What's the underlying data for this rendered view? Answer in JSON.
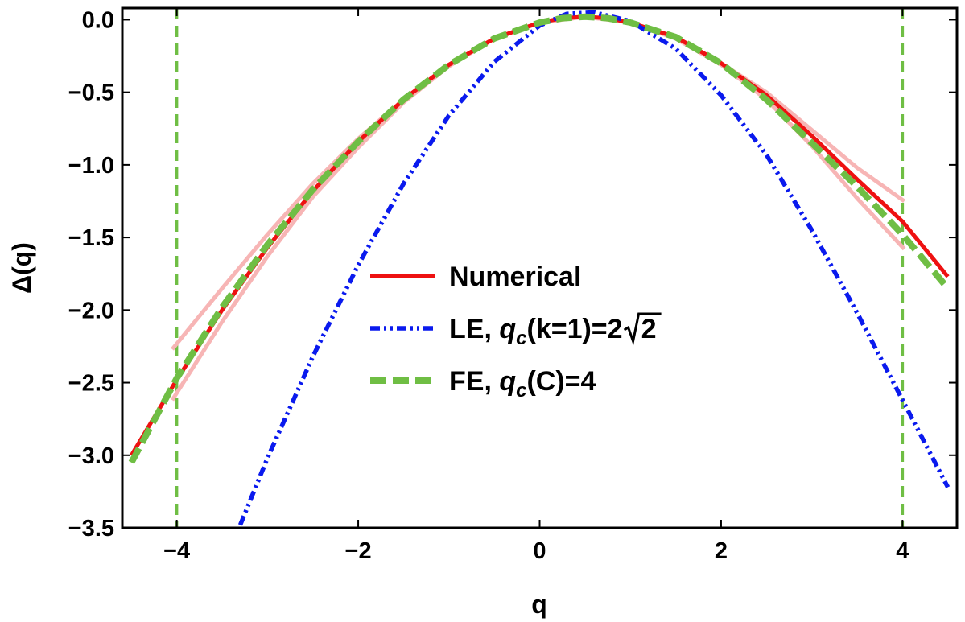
{
  "chart_data": {
    "type": "line",
    "xlabel": "q",
    "ylabel": "Δ(q)",
    "xlim": [
      -4.6,
      4.6
    ],
    "ylim": [
      -3.5,
      0.08
    ],
    "grid": false,
    "legend_position": "center",
    "x_ticks": [
      -4,
      -2,
      0,
      2,
      4
    ],
    "x_tick_labels": [
      "−4",
      "−2",
      "0",
      "2",
      "4"
    ],
    "y_ticks": [
      0.0,
      -0.5,
      -1.0,
      -1.5,
      -2.0,
      -2.5,
      -3.0,
      -3.5
    ],
    "y_tick_labels": [
      "0.0",
      "−0.5",
      "−1.0",
      "−1.5",
      "−2.0",
      "−2.5",
      "−3.0",
      "−3.5"
    ],
    "vertical_lines": [
      -4,
      4
    ],
    "series": [
      {
        "name": "Numerical",
        "color": "#ee1111",
        "style": "solid",
        "x": [
          -4.5,
          -4,
          -3.5,
          -3,
          -2.5,
          -2,
          -1.5,
          -1,
          -0.5,
          0,
          0.25,
          0.5,
          0.75,
          1,
          1.5,
          2,
          2.5,
          3,
          3.5,
          4,
          4.5
        ],
        "y": [
          -3.0,
          -2.48,
          -2.0,
          -1.57,
          -1.18,
          -0.84,
          -0.55,
          -0.31,
          -0.13,
          -0.02,
          0.01,
          0.02,
          0.01,
          -0.02,
          -0.12,
          -0.3,
          -0.52,
          -0.8,
          -1.1,
          -1.39,
          -1.77
        ]
      },
      {
        "name": "Numerical band (upper)",
        "color": "#f7b5b5",
        "style": "band",
        "x": [
          -4.05,
          -3.5,
          -3,
          -2.5,
          -2,
          -1.5,
          -1,
          -0.5,
          0,
          0.5,
          1,
          1.5,
          2,
          2.5,
          3,
          3.5,
          4.02
        ],
        "y": [
          -2.27,
          -1.85,
          -1.48,
          -1.13,
          -0.82,
          -0.55,
          -0.31,
          -0.13,
          -0.02,
          0.02,
          -0.02,
          -0.12,
          -0.3,
          -0.5,
          -0.76,
          -1.02,
          -1.25
        ]
      },
      {
        "name": "Numerical band (lower)",
        "color": "#f7b5b5",
        "style": "band",
        "x": [
          -4.05,
          -3.5,
          -3,
          -2.5,
          -2,
          -1.5,
          -1,
          -0.5,
          0,
          0.5,
          1,
          1.5,
          2,
          2.5,
          3,
          3.5,
          4.02
        ],
        "y": [
          -2.62,
          -2.08,
          -1.63,
          -1.22,
          -0.88,
          -0.57,
          -0.32,
          -0.13,
          -0.02,
          0.02,
          -0.02,
          -0.13,
          -0.31,
          -0.55,
          -0.87,
          -1.23,
          -1.58
        ]
      },
      {
        "name": "LE, q_c(k=1)=2√2",
        "color": "#0a1aee",
        "style": "dash-dot",
        "x": [
          -3.3,
          -3,
          -2.5,
          -2,
          -1.5,
          -1,
          -0.5,
          0,
          0.3,
          0.6,
          1,
          1.5,
          2,
          2.5,
          3,
          3.5,
          4,
          4.5
        ],
        "y": [
          -3.48,
          -3.02,
          -2.32,
          -1.69,
          -1.13,
          -0.66,
          -0.29,
          -0.04,
          0.04,
          0.05,
          -0.01,
          -0.2,
          -0.52,
          -0.93,
          -1.45,
          -2.02,
          -2.62,
          -3.22
        ]
      },
      {
        "name": "FE, q_c(C)=4",
        "color": "#6fbe44",
        "style": "dashed",
        "x": [
          -4.5,
          -4,
          -3.5,
          -3,
          -2.5,
          -2,
          -1.5,
          -1,
          -0.5,
          0,
          0.25,
          0.5,
          0.75,
          1,
          1.5,
          2,
          2.5,
          3,
          3.5,
          4,
          4.5
        ],
        "y": [
          -3.05,
          -2.47,
          -1.98,
          -1.55,
          -1.17,
          -0.84,
          -0.55,
          -0.31,
          -0.13,
          -0.02,
          0.01,
          0.02,
          0.01,
          -0.02,
          -0.12,
          -0.3,
          -0.55,
          -0.85,
          -1.15,
          -1.48,
          -1.85
        ]
      }
    ],
    "legend": [
      {
        "label_main": "Numerical",
        "label_sub": "",
        "label_rest": "",
        "sqrt": ""
      },
      {
        "label_main": "LE, q",
        "label_sub": "c",
        "label_rest": "(k=1)=2",
        "sqrt": "2"
      },
      {
        "label_main": "FE, q",
        "label_sub": "c",
        "label_rest": "(C)=4",
        "sqrt": ""
      }
    ]
  }
}
